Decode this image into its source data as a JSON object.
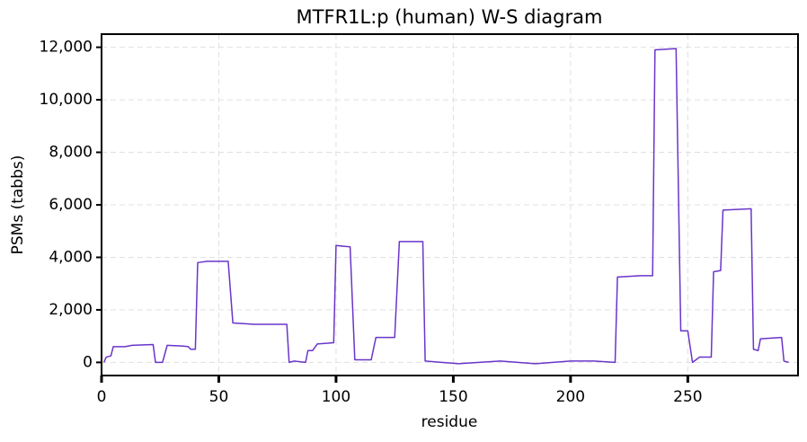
{
  "chart_data": {
    "type": "line",
    "title": "MTFR1L:p (human) W-S diagram",
    "xlabel": "residue",
    "ylabel": "PSMs (tabbs)",
    "x": [
      1,
      2,
      4,
      5,
      10,
      13,
      22,
      23,
      26,
      28,
      35,
      37,
      38,
      40,
      41,
      45,
      54,
      56,
      60,
      65,
      79,
      80,
      82,
      87,
      88,
      90,
      92,
      99,
      100,
      106,
      108,
      115,
      117,
      125,
      127,
      137,
      138,
      145,
      152,
      170,
      185,
      200,
      210,
      219,
      220,
      230,
      235,
      236,
      245,
      247,
      250,
      252,
      255,
      260,
      261,
      264,
      265,
      277,
      278,
      280,
      281,
      290,
      291,
      293
    ],
    "series": [
      {
        "name": "MTFR1L:p",
        "color": "#6a35c9",
        "values": [
          0,
          200,
          250,
          600,
          600,
          650,
          680,
          0,
          0,
          650,
          620,
          600,
          500,
          500,
          3800,
          3850,
          3850,
          1500,
          1480,
          1450,
          1450,
          0,
          50,
          0,
          450,
          450,
          700,
          750,
          4450,
          4400,
          100,
          100,
          950,
          950,
          4600,
          4600,
          50,
          0,
          -50,
          50,
          -50,
          50,
          50,
          0,
          3250,
          3300,
          3300,
          11900,
          11950,
          1200,
          1200,
          0,
          200,
          200,
          3450,
          3500,
          5800,
          5850,
          500,
          450,
          900,
          950,
          50,
          0
        ]
      }
    ],
    "xlim": [
      0,
      297
    ],
    "ylim": [
      -500,
      12500
    ],
    "xticks": [
      0,
      50,
      100,
      150,
      200,
      250
    ],
    "yticks": [
      0,
      {
        "value": 2000,
        "label": "2,000"
      },
      {
        "value": 4000,
        "label": "4,000"
      },
      {
        "value": 6000,
        "label": "6,000"
      },
      {
        "value": 8000,
        "label": "8,000"
      },
      {
        "value": 10000,
        "label": "10,000"
      },
      {
        "value": 12000,
        "label": "12,000"
      }
    ],
    "grid": true
  }
}
